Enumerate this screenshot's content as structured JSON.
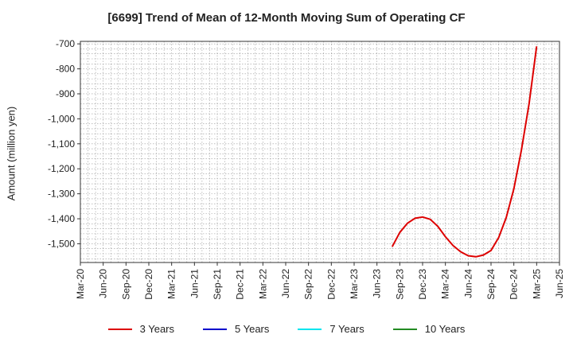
{
  "chart_data": {
    "type": "line",
    "title": "[6699]  Trend of Mean of 12-Month Moving Sum of Operating CF",
    "xlabel": "",
    "ylabel": "Amount (million yen)",
    "ylim": [
      -1575,
      -690
    ],
    "yticks": [
      -700,
      -800,
      -900,
      -1000,
      -1100,
      -1200,
      -1300,
      -1400,
      -1500
    ],
    "ytick_labels": [
      "-700",
      "-800",
      "-900",
      "-1,000",
      "-1,100",
      "-1,200",
      "-1,300",
      "-1,400",
      "-1,500"
    ],
    "x_tick_labels": [
      "Mar-20",
      "Jun-20",
      "Sep-20",
      "Dec-20",
      "Mar-21",
      "Jun-21",
      "Sep-21",
      "Dec-21",
      "Mar-22",
      "Jun-22",
      "Sep-22",
      "Dec-22",
      "Mar-23",
      "Jun-23",
      "Sep-23",
      "Dec-23",
      "Mar-24",
      "Jun-24",
      "Sep-24",
      "Dec-24",
      "Mar-25",
      "Jun-25"
    ],
    "grid": true,
    "legend_position": "bottom",
    "series": [
      {
        "name": "3 Years",
        "color": "#dd0000",
        "x": [
          "Aug-23",
          "Sep-23",
          "Oct-23",
          "Nov-23",
          "Dec-23",
          "Jan-24",
          "Feb-24",
          "Mar-24",
          "Apr-24",
          "May-24",
          "Jun-24",
          "Jul-24",
          "Aug-24",
          "Sep-24",
          "Oct-24",
          "Nov-24",
          "Dec-24",
          "Jan-25",
          "Feb-25",
          "Mar-25"
        ],
        "values": [
          -1512,
          -1455,
          -1418,
          -1398,
          -1393,
          -1402,
          -1430,
          -1472,
          -1507,
          -1532,
          -1548,
          -1552,
          -1545,
          -1527,
          -1475,
          -1395,
          -1280,
          -1125,
          -940,
          -710
        ]
      },
      {
        "name": "5 Years",
        "color": "#0000cc",
        "x": [],
        "values": []
      },
      {
        "name": "7 Years",
        "color": "#00e5ee",
        "x": [],
        "values": []
      },
      {
        "name": "10 Years",
        "color": "#228b22",
        "x": [],
        "values": []
      }
    ]
  }
}
